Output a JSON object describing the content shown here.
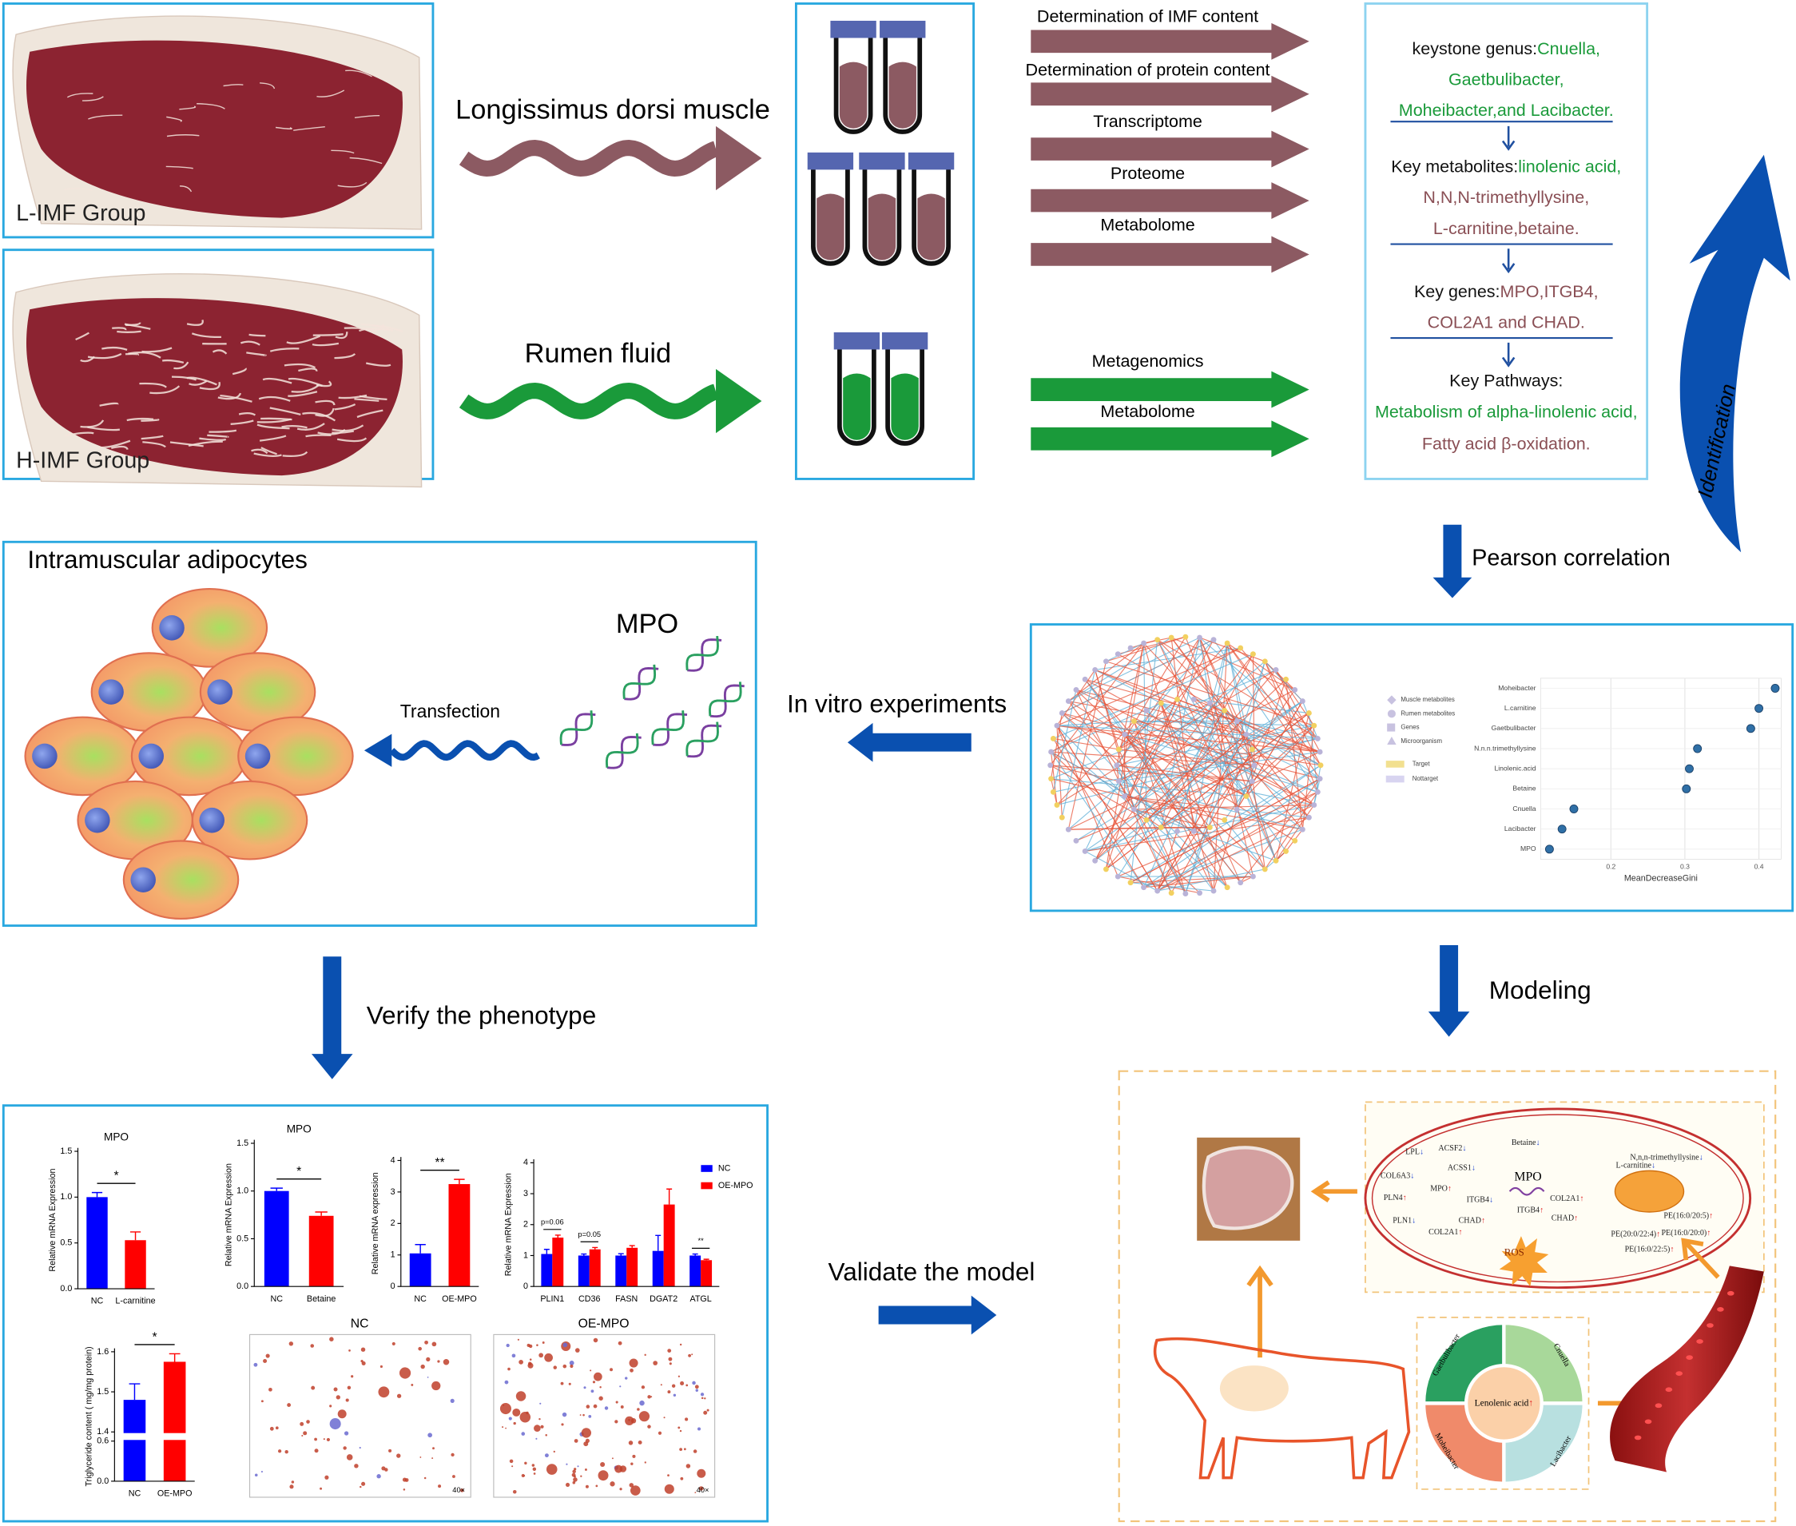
{
  "samples": {
    "low": "L-IMF Group",
    "high": "H-IMF Group"
  },
  "sources": {
    "muscle": "Longissimus dorsi muscle",
    "rumen": "Rumen fluid"
  },
  "muscle_assays": [
    "Determination of IMF content",
    "Determination of protein content",
    "Transcriptome",
    "Proteome",
    "Metabolome"
  ],
  "rumen_assays": [
    "Metagenomics",
    "Metabolome"
  ],
  "summary": [
    [
      {
        "text": "keystone genus:"
      },
      {
        "text": "Cnuella,",
        "color": "#1a9a3a"
      }
    ],
    [
      {
        "text": "Gaetbulibacter,",
        "color": "#1a9a3a"
      }
    ],
    [
      {
        "text": "Moheibacter,and Lacibacter.",
        "color": "#1a9a3a"
      }
    ],
    [
      {
        "text": "Key metabolites:"
      },
      {
        "text": "linolenic acid,",
        "color": "#1a9a3a"
      }
    ],
    [
      {
        "text": "N,N,N-trimethyllysine,",
        "color": "#8a4f55"
      }
    ],
    [
      {
        "text": "L-carnitine,betaine.",
        "color": "#8a4f55"
      }
    ],
    [
      {
        "text": "Key genes:"
      },
      {
        "text": "MPO,ITGB4,",
        "color": "#8a4f55"
      }
    ],
    [
      {
        "text": "COL2A1 and CHAD.",
        "color": "#8a4f55"
      }
    ],
    [
      {
        "text": "Key Pathways:"
      }
    ],
    [
      {
        "text": "Metabolism of alpha-linolenic acid,",
        "color": "#1a9a3a"
      }
    ],
    [
      {
        "text": "Fatty acid β-oxidation.",
        "color": "#8a4f55"
      }
    ]
  ],
  "steps": {
    "identification": "Identification",
    "pearson": "Pearson correlation",
    "in_vitro": "In vitro experiments",
    "modeling": "Modeling",
    "verify": "Verify the phenotype",
    "validate": "Validate the model"
  },
  "adipocytes": {
    "title": "Intramuscular adipocytes",
    "gene": "MPO",
    "method": "Transfection"
  },
  "network_legend": [
    "Muscle metabolites",
    "Rumen metabolites",
    "Genes",
    "Microorganism",
    "Target",
    "Nottarget"
  ],
  "importance": {
    "type": "scatter",
    "categories": [
      "Moheibacter",
      "L.carnitine",
      "Gaetbulibacter",
      "N.n.n.trimethyllysine",
      "Linolenic.acid",
      "Betaine",
      "Cnuella",
      "Lacibacter",
      "MPO"
    ],
    "values": [
      0.422,
      0.4,
      0.389,
      0.317,
      0.306,
      0.302,
      0.15,
      0.134,
      0.117
    ],
    "xlim": [
      0.105,
      0.43
    ],
    "xticks": [
      0.2,
      0.3,
      0.4
    ],
    "xlabel": "MeanDecreaseGini",
    "color": "#2f6fa6",
    "grid": true
  },
  "bar_charts": [
    {
      "type": "bar",
      "title": "MPO",
      "ylabel": "Relative mRNA Expression",
      "categories": [
        "NC",
        "L-carnitine"
      ],
      "values": [
        1.0,
        0.53
      ],
      "errors": [
        0.05,
        0.09
      ],
      "colors": [
        "#0000ff",
        "#ff0000"
      ],
      "significance": "*",
      "ylim": [
        0,
        1.5
      ],
      "yticks": [
        {
          "value": 0,
          "label": "0.0"
        },
        0.5,
        {
          "value": 1,
          "label": "1.0"
        },
        1.5
      ]
    },
    {
      "type": "bar",
      "title": "MPO",
      "ylabel": "Relative mRNA Expression",
      "categories": [
        "NC",
        "Betaine"
      ],
      "values": [
        1.0,
        0.74
      ],
      "errors": [
        0.03,
        0.04
      ],
      "colors": [
        "#0000ff",
        "#ff0000"
      ],
      "significance": "*",
      "ylim": [
        0,
        1.5
      ],
      "yticks": [
        {
          "value": 0,
          "label": "0.0"
        },
        0.5,
        {
          "value": 1,
          "label": "1.0"
        },
        1.5
      ]
    },
    {
      "type": "bar",
      "ylabel": "Relative mRNA expression",
      "categories": [
        "NC",
        "OE-MPO"
      ],
      "values": [
        1.05,
        3.25
      ],
      "errors": [
        0.28,
        0.15
      ],
      "colors": [
        "#0000ff",
        "#ff0000"
      ],
      "significance": "**",
      "ylim": [
        0,
        4
      ],
      "yticks": [
        0,
        1,
        2,
        3,
        4
      ]
    },
    {
      "type": "bar",
      "ylabel": "Relative mRNA Expression",
      "categories": [
        "PLIN1",
        "CD36",
        "FASN",
        "DGAT2",
        "ATGL"
      ],
      "series": [
        {
          "name": "NC",
          "color": "#0000ff",
          "values": [
            1.05,
            1.0,
            1.0,
            1.15,
            1.0
          ],
          "errors": [
            0.15,
            0.05,
            0.06,
            0.5,
            0.05
          ]
        },
        {
          "name": "OE-MPO",
          "color": "#ff0000",
          "values": [
            1.58,
            1.2,
            1.25,
            2.65,
            0.85
          ],
          "errors": [
            0.08,
            0.06,
            0.07,
            0.5,
            0.03
          ]
        }
      ],
      "annotations": [
        "p=0.06",
        "p=0.05",
        null,
        null,
        "**"
      ],
      "ylim": [
        0,
        4
      ],
      "yticks": [
        0,
        1,
        2,
        3,
        4
      ]
    },
    {
      "type": "bar",
      "ylabel": "Triglyceride content ( mg/mg protein)",
      "categories": [
        "NC",
        "OE-MPO"
      ],
      "values": [
        1.48,
        1.575
      ],
      "errors": [
        0.04,
        0.02
      ],
      "colors": [
        "#0000ff",
        "#ff0000"
      ],
      "significance": "*",
      "ylim": [
        0,
        1.6
      ],
      "ybreak": [
        0.6,
        1.4
      ],
      "yticks": [
        {
          "value": 0,
          "label": "0.0"
        },
        0.6,
        1.4,
        1.5,
        1.6
      ]
    }
  ],
  "micrographs": [
    {
      "label": "NC",
      "magnification": "40×"
    },
    {
      "label": "OE-MPO",
      "magnification": "40×"
    }
  ],
  "model": {
    "cell_labels": [
      {
        "text": "N,n,n-trimethyllysine",
        "trend": "↓",
        "trend_color": "#1a3fd0"
      },
      {
        "text": "Betaine",
        "trend": "↓",
        "trend_color": "#1a3fd0"
      },
      {
        "text": "ACSF2",
        "trend": "↓",
        "trend_color": "#1a3fd0"
      },
      {
        "text": "LPL",
        "trend": "↓",
        "trend_color": "#1a3fd0"
      },
      {
        "text": "ACSS1",
        "trend": "↓",
        "trend_color": "#1a3fd0"
      },
      {
        "text": "COL6A3",
        "trend": "↓",
        "trend_color": "#1a3fd0"
      },
      {
        "text": "MPO",
        "trend": "↑",
        "trend_color": "#e02020"
      },
      {
        "text": "PLN4",
        "trend": "↑",
        "trend_color": "#e02020"
      },
      {
        "text": "PLN1",
        "trend": "↓",
        "trend_color": "#1a3fd0"
      },
      {
        "text": "ITGB4",
        "trend": "↓",
        "trend_color": "#1a3fd0"
      },
      {
        "text": "CHAD",
        "trend": "↑",
        "trend_color": "#e02020"
      },
      {
        "text": "COL2A1",
        "trend": "↑",
        "trend_color": "#e02020"
      },
      {
        "text": "L-carnitine",
        "trend": "↓",
        "trend_color": "#1a3fd0"
      },
      {
        "text": "ITGB4",
        "trend": "↑",
        "trend_color": "#e02020"
      },
      {
        "text": "COL2A1",
        "trend": "↑",
        "trend_color": "#e02020"
      },
      {
        "text": "CHAD",
        "trend": "↑",
        "trend_color": "#e02020"
      },
      {
        "text": "PE(16:0/20:5)",
        "trend": "↑",
        "trend_color": "#e02020"
      },
      {
        "text": "PE(20:0/22:4)",
        "trend": "↑",
        "trend_color": "#e02020"
      },
      {
        "text": "PE(16:0/20:0)",
        "trend": "↑",
        "trend_color": "#e02020"
      },
      {
        "text": "PE(16:0/22:5)",
        "trend": "↑",
        "trend_color": "#e02020"
      }
    ],
    "gene": "MPO",
    "stress": "ROS",
    "rumen_genera": [
      "Gaetbulibacter",
      "Cnuella",
      "Moheibacter",
      "Lacibacter"
    ],
    "rumen_metabolite": {
      "text": "Lenolenic acid",
      "trend": "↑",
      "trend_color": "#e02020"
    }
  }
}
